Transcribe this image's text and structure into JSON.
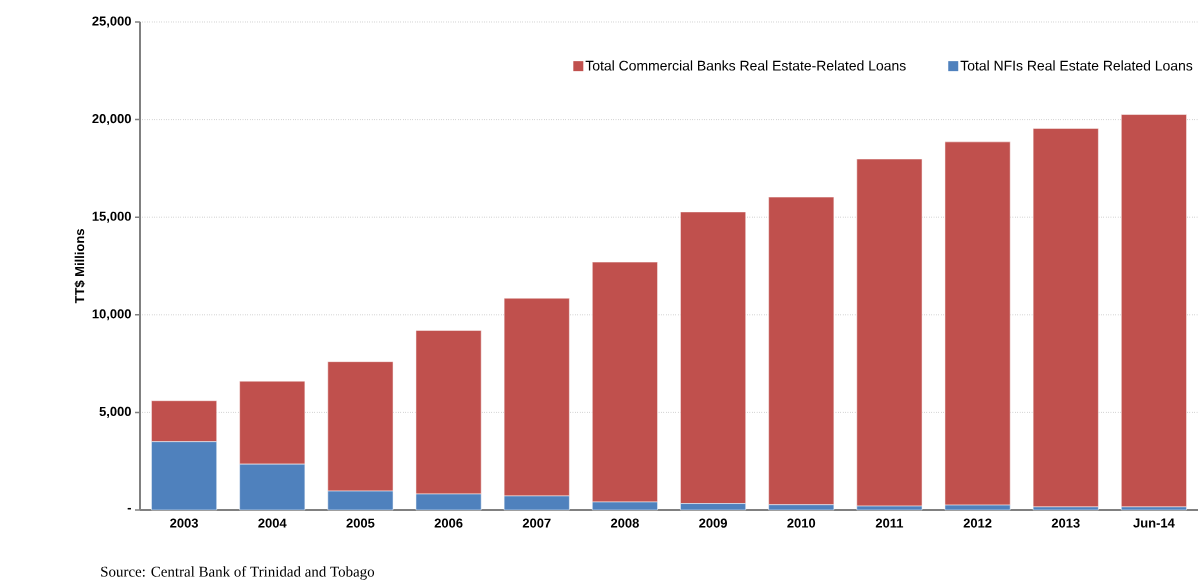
{
  "chart_data": {
    "type": "bar",
    "stacked": true,
    "ylabel": "TT$ Millions",
    "categories": [
      "2003",
      "2004",
      "2005",
      "2006",
      "2007",
      "2008",
      "2009",
      "2010",
      "2011",
      "2012",
      "2013",
      "Jun-14"
    ],
    "series": [
      {
        "name": "Total NFIs Real Estate Related Loans",
        "color": "#4f81bd",
        "values": [
          3500,
          2350,
          970,
          820,
          720,
          410,
          330,
          270,
          200,
          250,
          160,
          160
        ]
      },
      {
        "name": "Total Commercial Banks Real Estate-Related Loans",
        "color": "#c0504d",
        "values": [
          2100,
          4250,
          6630,
          8380,
          10130,
          12290,
          14940,
          15760,
          17780,
          18610,
          19390,
          20100
        ]
      }
    ],
    "ylim": [
      0,
      25000
    ],
    "yticks": [
      {
        "value": 0,
        "label": "-"
      },
      {
        "value": 5000,
        "label": "5,000"
      },
      {
        "value": 10000,
        "label": "10,000"
      },
      {
        "value": 15000,
        "label": "15,000"
      },
      {
        "value": 20000,
        "label": "20,000"
      },
      {
        "value": 25000,
        "label": "25,000"
      }
    ],
    "grid": "y",
    "legend": "top",
    "annotations": [
      "Source: Central Bank of Trinidad and Tobago"
    ]
  }
}
